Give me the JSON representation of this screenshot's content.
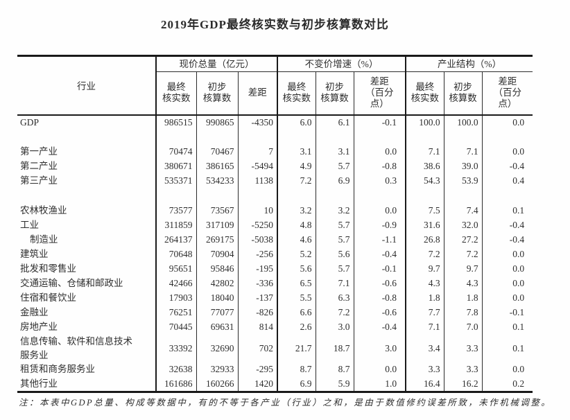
{
  "title": "2019年GDP最终核实数与初步核算数对比",
  "table": {
    "industry_header": "行业",
    "groups": [
      {
        "label": "现价总量（亿元）",
        "sub": [
          "最终\n核实数",
          "初步\n核算数",
          "差距"
        ]
      },
      {
        "label": "不变价增速（%）",
        "sub": [
          "最终\n核实数",
          "初步\n核算数",
          "差距\n（百分\n点）"
        ]
      },
      {
        "label": "产业结构（%）",
        "sub": [
          "最终\n核实数",
          "初步\n核算数",
          "差距\n（百分\n点）"
        ]
      }
    ],
    "rows": [
      {
        "industry": "GDP",
        "indent": false,
        "values": [
          "986515",
          "990865",
          "-4350",
          "6.0",
          "6.1",
          "-0.1",
          "100.0",
          "100.0",
          "0.0"
        ]
      },
      {
        "blank": true
      },
      {
        "industry": "第一产业",
        "indent": false,
        "values": [
          "70474",
          "70467",
          "7",
          "3.1",
          "3.1",
          "0.0",
          "7.1",
          "7.1",
          "0.0"
        ]
      },
      {
        "industry": "第二产业",
        "indent": false,
        "values": [
          "380671",
          "386165",
          "-5494",
          "4.9",
          "5.7",
          "-0.8",
          "38.6",
          "39.0",
          "-0.4"
        ]
      },
      {
        "industry": "第三产业",
        "indent": false,
        "values": [
          "535371",
          "534233",
          "1138",
          "7.2",
          "6.9",
          "0.3",
          "54.3",
          "53.9",
          "0.4"
        ]
      },
      {
        "blank": true
      },
      {
        "industry": "农林牧渔业",
        "indent": false,
        "values": [
          "73577",
          "73567",
          "10",
          "3.2",
          "3.2",
          "0.0",
          "7.5",
          "7.4",
          "0.1"
        ]
      },
      {
        "industry": "工业",
        "indent": false,
        "values": [
          "311859",
          "317109",
          "-5250",
          "4.8",
          "5.7",
          "-0.9",
          "31.6",
          "32.0",
          "-0.4"
        ]
      },
      {
        "industry": "制造业",
        "indent": true,
        "values": [
          "264137",
          "269175",
          "-5038",
          "4.6",
          "5.7",
          "-1.1",
          "26.8",
          "27.2",
          "-0.4"
        ]
      },
      {
        "industry": "建筑业",
        "indent": false,
        "values": [
          "70648",
          "70904",
          "-256",
          "5.2",
          "5.6",
          "-0.4",
          "7.2",
          "7.2",
          "0.0"
        ]
      },
      {
        "industry": "批发和零售业",
        "indent": false,
        "values": [
          "95651",
          "95846",
          "-195",
          "5.6",
          "5.7",
          "-0.1",
          "9.7",
          "9.7",
          "0.0"
        ]
      },
      {
        "industry": "交通运输、仓储和邮政业",
        "indent": false,
        "values": [
          "42466",
          "42802",
          "-336",
          "6.5",
          "7.1",
          "-0.6",
          "4.3",
          "4.3",
          "0.0"
        ]
      },
      {
        "industry": "住宿和餐饮业",
        "indent": false,
        "values": [
          "17903",
          "18040",
          "-137",
          "5.5",
          "6.3",
          "-0.8",
          "1.8",
          "1.8",
          "0.0"
        ]
      },
      {
        "industry": "金融业",
        "indent": false,
        "values": [
          "76251",
          "77077",
          "-826",
          "6.6",
          "7.2",
          "-0.6",
          "7.7",
          "7.8",
          "-0.1"
        ]
      },
      {
        "industry": "房地产业",
        "indent": false,
        "values": [
          "70445",
          "69631",
          "814",
          "2.6",
          "3.0",
          "-0.4",
          "7.1",
          "7.0",
          "0.1"
        ]
      },
      {
        "industry": "信息传输、软件和信息技术服务业",
        "indent": false,
        "values": [
          "33392",
          "32690",
          "702",
          "21.7",
          "18.7",
          "3.0",
          "3.4",
          "3.3",
          "0.1"
        ]
      },
      {
        "industry": "租赁和商务服务业",
        "indent": false,
        "values": [
          "32638",
          "32933",
          "-295",
          "8.7",
          "8.7",
          "0.0",
          "3.3",
          "3.3",
          "0.0"
        ]
      },
      {
        "industry": "其他行业",
        "indent": false,
        "values": [
          "161686",
          "160266",
          "1420",
          "6.9",
          "5.9",
          "1.0",
          "16.4",
          "16.2",
          "0.2"
        ]
      }
    ]
  },
  "footnote": "注：本表中GDP总量、构成等数据中，有的不等于各产业（行业）之和，是由于数值修约误差所致，未作机械调整。"
}
